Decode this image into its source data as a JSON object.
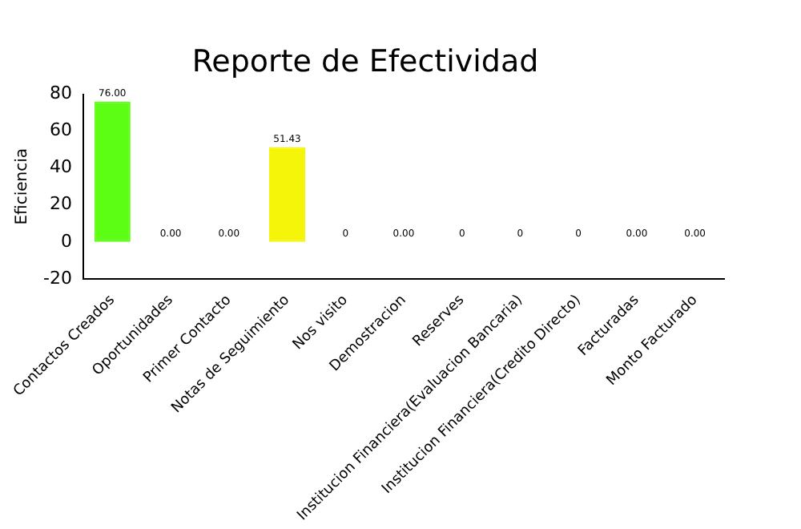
{
  "chart_data": {
    "type": "bar",
    "title": "Reporte de Efectividad",
    "ylabel": "Eficiencia",
    "categories": [
      "Contactos Creados",
      "Oportunidades",
      "Primer Contacto",
      "Notas de Seguimiento",
      "Nos visito",
      "Demostracion",
      "Reserves",
      "Institucion Financiera(Evaluacion Bancaria)",
      "Institucion Financiera(Credito Directo)",
      "Facturadas",
      "Monto Facturado"
    ],
    "values": [
      76,
      0,
      0,
      51.43,
      0,
      0,
      0,
      0,
      0,
      0,
      0
    ],
    "colors": [
      "#5cff14",
      "#ff3333",
      "#ff3333",
      "#f5f50a",
      "#ff3333",
      "#ff3333",
      "#ff3333",
      "#ff3333",
      "#ff3333",
      "#ff3333",
      "#ff3333"
    ],
    "value_labels": [
      "76.00",
      "0.00",
      "0.00",
      "51.43",
      "0",
      "0.00",
      "0",
      "0",
      "0",
      "0.00",
      "0.00"
    ],
    "ylim": [
      -20,
      80
    ],
    "yticks": [
      -20,
      0,
      20,
      40,
      60,
      80
    ],
    "grid": false,
    "legend": false
  }
}
